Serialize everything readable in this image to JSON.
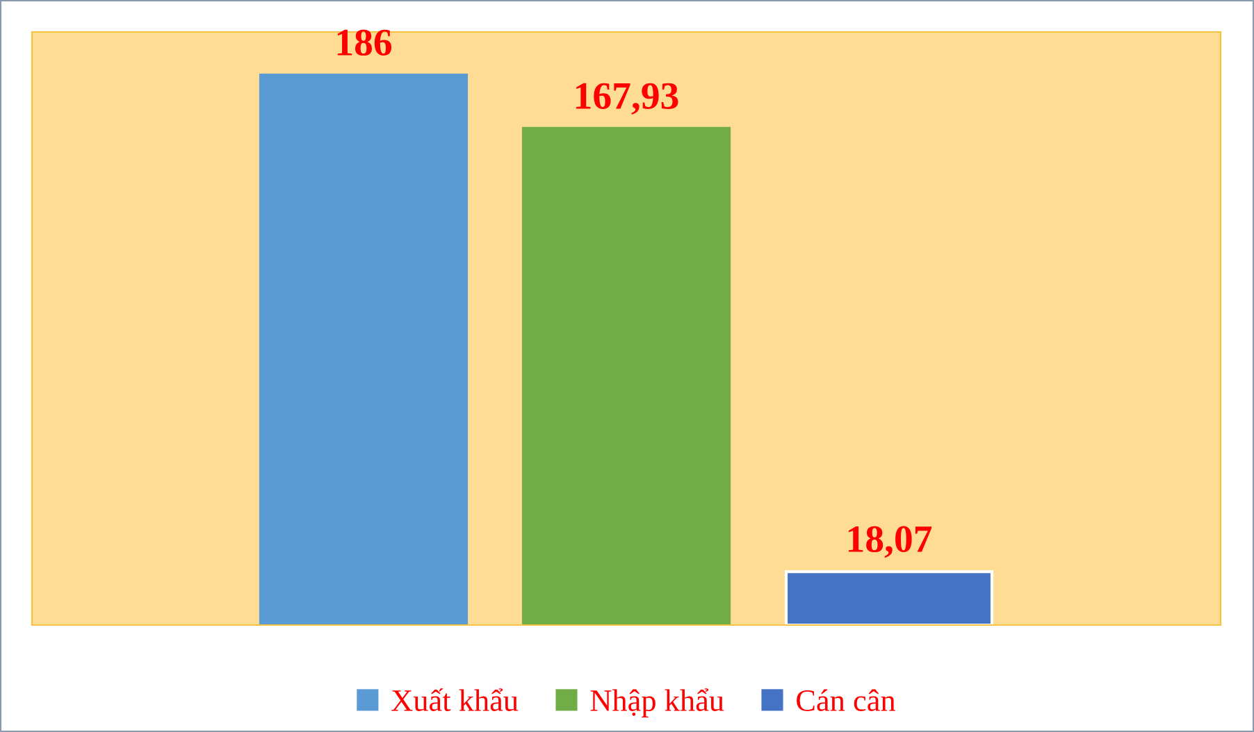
{
  "chart_data": {
    "type": "bar",
    "categories": [
      null
    ],
    "series": [
      {
        "name": "Xuất khẩu",
        "color": "#5b9bd5",
        "values": [
          186
        ],
        "value_labels": [
          "186"
        ]
      },
      {
        "name": "Nhập khẩu",
        "color": "#70ad47",
        "values": [
          167.93
        ],
        "value_labels": [
          "167,93"
        ]
      },
      {
        "name": "Cán cân",
        "color": "#4472c4",
        "values": [
          18.07
        ],
        "value_labels": [
          "18,07"
        ]
      }
    ],
    "grid": false,
    "legend": "bottom"
  }
}
